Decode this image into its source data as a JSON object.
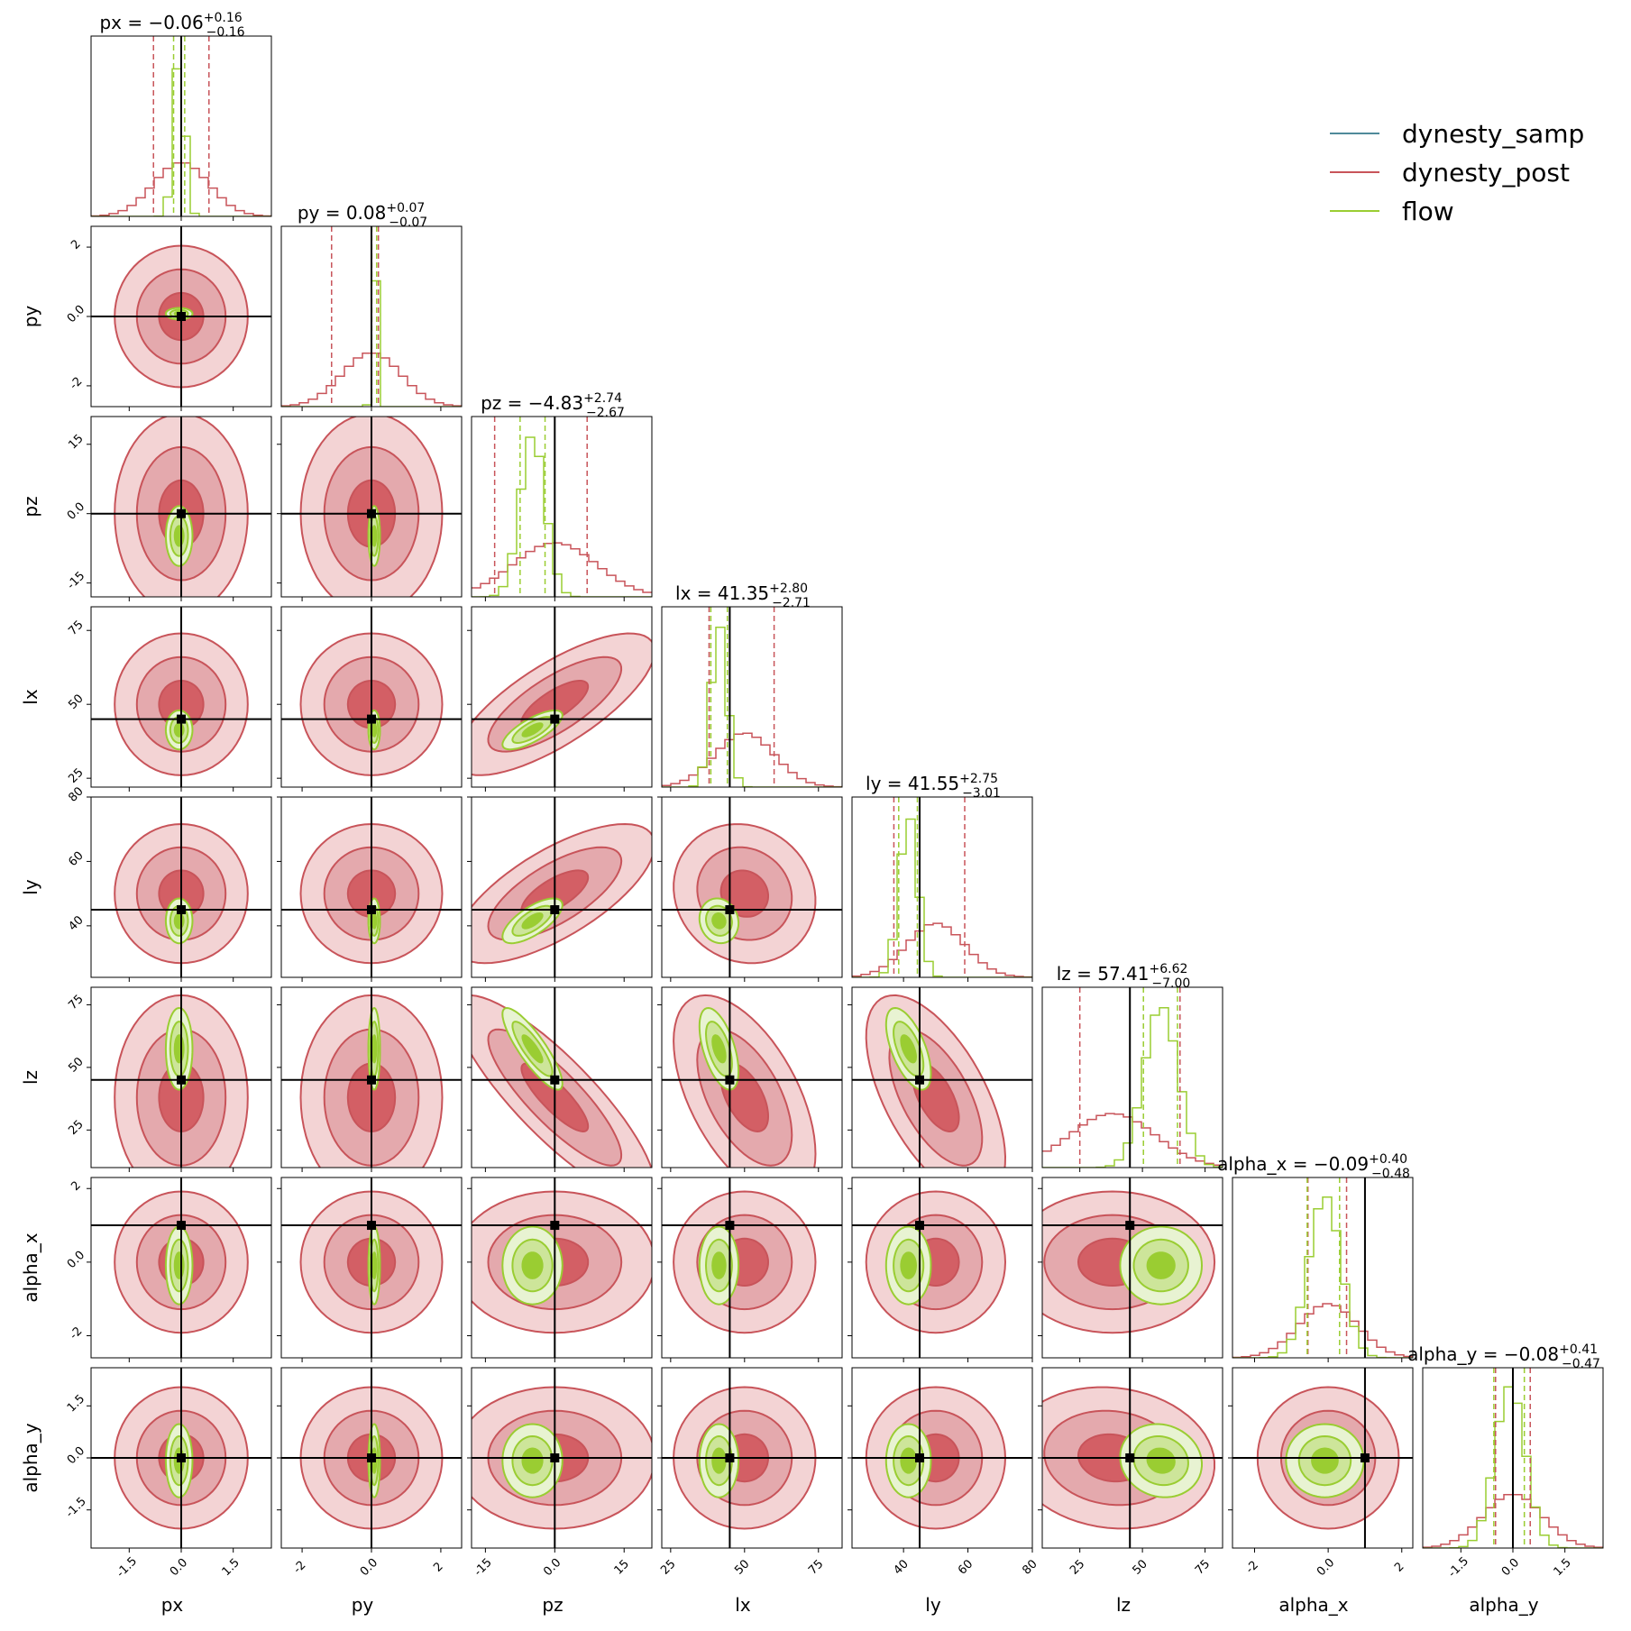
{
  "chart_data": {
    "type": "corner",
    "parameters": [
      "px",
      "py",
      "pz",
      "lx",
      "ly",
      "lz",
      "alpha_x",
      "alpha_y"
    ],
    "ranges": [
      [
        -2.6,
        2.6
      ],
      [
        -2.6,
        2.6
      ],
      [
        -18,
        21
      ],
      [
        22,
        83
      ],
      [
        24,
        80
      ],
      [
        10,
        82
      ],
      [
        -2.6,
        2.3
      ],
      [
        -2.6,
        2.6
      ]
    ],
    "ticks": [
      [
        -1.5,
        0.0,
        1.5
      ],
      [
        -2,
        0,
        2
      ],
      [
        -15,
        0,
        15
      ],
      [
        25,
        50,
        75
      ],
      [
        40,
        60,
        80
      ],
      [
        25,
        50,
        75
      ],
      [
        -2,
        0,
        2
      ],
      [
        -1.5,
        0.0,
        1.5
      ]
    ],
    "truths": [
      0,
      0,
      0,
      45,
      45,
      45,
      1,
      0
    ],
    "diag_titles": [
      {
        "main": "px = −0.06",
        "sup": "+0.16",
        "sub": "−0.16"
      },
      {
        "main": "py = 0.08",
        "sup": "+0.07",
        "sub": "−0.07"
      },
      {
        "main": "pz = −4.83",
        "sup": "+2.74",
        "sub": "−2.67"
      },
      {
        "main": "lx = 41.35",
        "sup": "+2.80",
        "sub": "−2.71"
      },
      {
        "main": "ly = 41.55",
        "sup": "+2.75",
        "sub": "−3.01"
      },
      {
        "main": "lz = 57.41",
        "sup": "+6.62",
        "sub": "−7.00"
      },
      {
        "main": "alpha_x = −0.09",
        "sup": "+0.40",
        "sub": "−0.48"
      },
      {
        "main": "alpha_y = −0.08",
        "sup": "+0.41",
        "sub": "−0.47"
      }
    ],
    "series": [
      {
        "name": "dynesty_samp",
        "color": "#4f8a9a"
      },
      {
        "name": "dynesty_post",
        "color": "#c8545a",
        "means": [
          0.0,
          0.0,
          0.0,
          50,
          50,
          38,
          0.0,
          0.0
        ],
        "sds": [
          0.8,
          0.85,
          9.0,
          10.0,
          9.0,
          17.0,
          0.8,
          0.85
        ]
      },
      {
        "name": "flow",
        "color": "#9acd32",
        "means": [
          -0.06,
          0.08,
          -4.83,
          41.35,
          41.55,
          57.41,
          -0.09,
          -0.08
        ],
        "sds": [
          0.16,
          0.07,
          2.7,
          2.75,
          2.9,
          6.8,
          0.44,
          0.44
        ]
      }
    ],
    "diag_quantiles": {
      "dynesty_post": [
        [
          -0.8,
          0.8
        ],
        [
          -1.15,
          0.2
        ],
        [
          -13,
          7
        ],
        [
          38,
          60
        ],
        [
          37,
          59
        ],
        [
          25,
          65
        ],
        [
          -0.55,
          0.5
        ],
        [
          -0.5,
          0.5
        ]
      ],
      "flow": [
        [
          -0.22,
          0.1
        ],
        [
          0.01,
          0.15
        ],
        [
          -7.5,
          -2.1
        ],
        [
          38.6,
          44.2
        ],
        [
          38.5,
          44.3
        ],
        [
          50.4,
          64.0
        ],
        [
          -0.57,
          0.31
        ],
        [
          -0.55,
          0.33
        ]
      ]
    },
    "correlations": {
      "2,3": 0.75,
      "2,4": 0.7,
      "2,5": -0.85,
      "3,4": -0.1,
      "3,5": -0.55,
      "4,5": -0.6,
      "5,7": -0.1,
      "6,7": 0.0
    },
    "legend_position": "top-right"
  }
}
